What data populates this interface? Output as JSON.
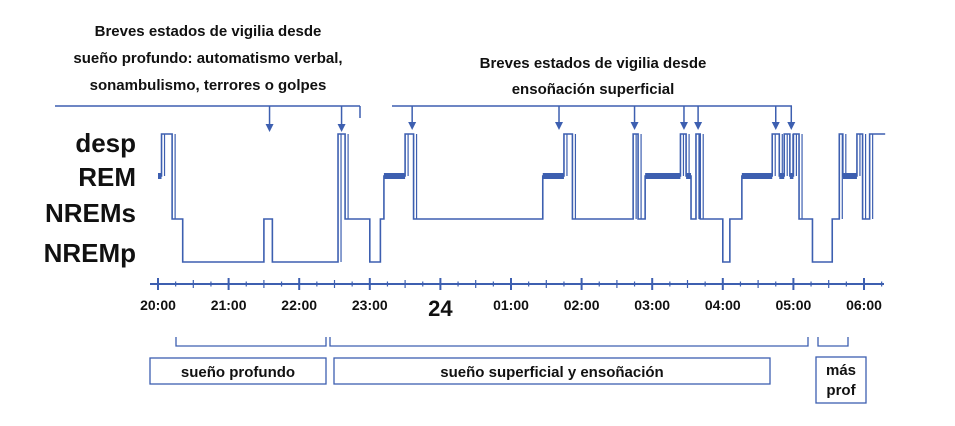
{
  "chart_data": {
    "type": "line",
    "title": "",
    "xlabel": "",
    "ylabel": "",
    "y_categories": [
      "desp",
      "REM",
      "NREMs",
      "NREMp"
    ],
    "x_ticks": [
      "20:00",
      "21:00",
      "22:00",
      "23:00",
      "24",
      "01:00",
      "02:00",
      "03:00",
      "04:00",
      "05:00",
      "06:00"
    ],
    "x_range_hours": [
      20,
      30.5
    ],
    "series": [
      {
        "steps": [
          [
            20.0,
            "REM"
          ],
          [
            20.05,
            "desp"
          ],
          [
            20.2,
            "NREMs"
          ],
          [
            20.35,
            "NREMp"
          ],
          [
            21.5,
            "NREMs"
          ],
          [
            21.62,
            "NREMp"
          ],
          [
            22.55,
            "desp"
          ],
          [
            22.65,
            "NREMs"
          ],
          [
            23.0,
            "NREMp"
          ],
          [
            23.15,
            "NREMs"
          ],
          [
            23.2,
            "REM"
          ],
          [
            23.5,
            "desp"
          ],
          [
            23.62,
            "NREMs"
          ],
          [
            25.45,
            "REM"
          ],
          [
            25.75,
            "desp"
          ],
          [
            25.87,
            "NREMs"
          ],
          [
            26.73,
            "desp"
          ],
          [
            26.8,
            "NREMs"
          ],
          [
            26.9,
            "REM"
          ],
          [
            27.4,
            "desp"
          ],
          [
            27.48,
            "REM"
          ],
          [
            27.55,
            "NREMs"
          ],
          [
            27.62,
            "desp"
          ],
          [
            27.68,
            "NREMs"
          ],
          [
            28.0,
            "NREMp"
          ],
          [
            28.1,
            "NREMs"
          ],
          [
            28.27,
            "REM"
          ],
          [
            28.7,
            "desp"
          ],
          [
            28.8,
            "REM"
          ],
          [
            28.87,
            "desp"
          ],
          [
            28.95,
            "REM"
          ],
          [
            29.0,
            "desp"
          ],
          [
            29.08,
            "NREMs"
          ],
          [
            29.27,
            "NREMp"
          ],
          [
            29.55,
            "NREMs"
          ],
          [
            29.65,
            "desp"
          ],
          [
            29.7,
            "REM"
          ],
          [
            29.9,
            "desp"
          ],
          [
            29.98,
            "NREMs"
          ],
          [
            30.08,
            "desp"
          ],
          [
            30.3,
            "desp"
          ]
        ]
      }
    ],
    "annotations": [
      {
        "lines": [
          "Breves estados de vigilia desde",
          "sueño profundo: automatismo verbal,",
          "sonambulismo, terrores o golpes"
        ],
        "arrow_times": [
          21.58,
          22.6
        ]
      },
      {
        "lines": [
          "Breves estados de vigilia desde",
          "ensoñación superficial"
        ],
        "arrow_times": [
          23.6,
          25.68,
          26.75,
          27.45,
          27.65,
          28.75,
          28.97
        ]
      }
    ],
    "phases": [
      {
        "label": "sueño profundo",
        "start": 20.35,
        "end": 22.6
      },
      {
        "label": "sueño superficial y ensoñación",
        "start": 22.6,
        "end": 29.4
      },
      {
        "label": "más\nprof",
        "start": 29.4,
        "end": 29.85
      }
    ]
  }
}
